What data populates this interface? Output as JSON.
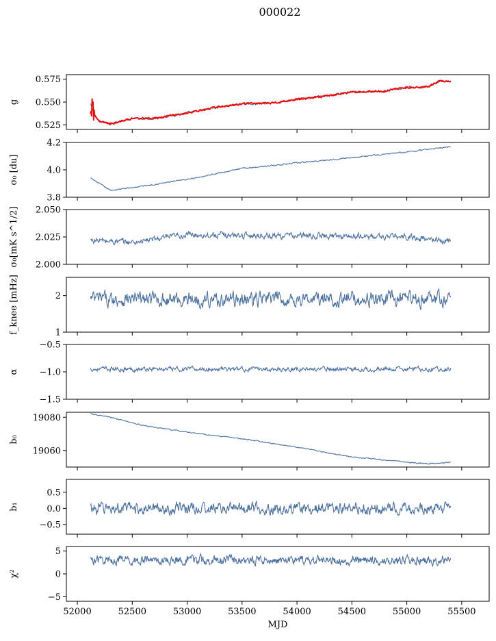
{
  "figure": {
    "title": "000022"
  },
  "colors": {
    "series": "#4c72a4",
    "fit": "#ff0000",
    "axis": "#000000"
  },
  "chart_data": [
    {
      "type": "line",
      "ylabel": "g",
      "ylim": [
        0.52,
        0.58
      ],
      "yticks": [
        0.525,
        0.55,
        0.575
      ],
      "ytick_labels": [
        "0.525",
        "0.550",
        "0.575"
      ],
      "xlim": [
        51900,
        55750
      ],
      "xticks": [
        52000,
        52500,
        53000,
        53500,
        54000,
        54500,
        55000,
        55500
      ],
      "x_range": [
        52120,
        55400
      ],
      "trend_x": [
        52120,
        52150,
        52200,
        52300,
        52500,
        52700,
        53000,
        53300,
        53500,
        53800,
        54000,
        54300,
        54500,
        54800,
        55000,
        55200,
        55300,
        55400
      ],
      "trend_y": [
        0.548,
        0.537,
        0.529,
        0.526,
        0.532,
        0.532,
        0.538,
        0.545,
        0.548,
        0.549,
        0.553,
        0.557,
        0.561,
        0.562,
        0.566,
        0.567,
        0.573,
        0.572
      ],
      "noise": 0.0012,
      "n_points": 700,
      "overlay": "fit"
    },
    {
      "type": "line",
      "ylabel": "σ₀ [du]",
      "ylim": [
        3.8,
        4.2
      ],
      "yticks": [
        3.8,
        4.0,
        4.2
      ],
      "ytick_labels": [
        "3.8",
        "4.0",
        "4.2"
      ],
      "xlim": [
        51900,
        55750
      ],
      "x_range": [
        52120,
        55400
      ],
      "trend_x": [
        52120,
        52300,
        52500,
        53000,
        53500,
        54000,
        54500,
        55000,
        55400
      ],
      "trend_y": [
        3.94,
        3.85,
        3.87,
        3.93,
        4.01,
        4.05,
        4.09,
        4.13,
        4.17
      ],
      "noise": 0.005,
      "n_points": 700
    },
    {
      "type": "line",
      "ylabel": "σ₀[mK s^1/2]",
      "ylim": [
        2.0,
        2.05
      ],
      "yticks": [
        2.0,
        2.025,
        2.05
      ],
      "ytick_labels": [
        "2.000",
        "2.025",
        "2.050"
      ],
      "xlim": [
        51900,
        55750
      ],
      "x_range": [
        52120,
        55400
      ],
      "trend_x": [
        52120,
        52500,
        53000,
        54000,
        55000,
        55400
      ],
      "trend_y": [
        2.022,
        2.02,
        2.027,
        2.026,
        2.025,
        2.021
      ],
      "noise": 0.003,
      "n_points": 700
    },
    {
      "type": "line",
      "ylabel": "f_knee [mHz]",
      "ylim": [
        1.0,
        2.5
      ],
      "yticks": [
        1,
        2
      ],
      "ytick_labels": [
        "1",
        "2"
      ],
      "xlim": [
        51900,
        55750
      ],
      "x_range": [
        52120,
        55400
      ],
      "trend_x": [
        52120,
        55400
      ],
      "trend_y": [
        1.9,
        1.9
      ],
      "noise": 0.22,
      "n_points": 700
    },
    {
      "type": "line",
      "ylabel": "α",
      "ylim": [
        -1.5,
        -0.5
      ],
      "yticks": [
        -1.5,
        -1.0,
        -0.5
      ],
      "ytick_labels": [
        "−1.5",
        "−1.0",
        "−0.5"
      ],
      "xlim": [
        51900,
        55750
      ],
      "x_range": [
        52120,
        55400
      ],
      "trend_x": [
        52120,
        55400
      ],
      "trend_y": [
        -0.95,
        -0.95
      ],
      "noise": 0.045,
      "n_points": 700
    },
    {
      "type": "line",
      "ylabel": "b₀",
      "ylim": [
        19050,
        19083
      ],
      "yticks": [
        19060,
        19080
      ],
      "ytick_labels": [
        "19060",
        "19080"
      ],
      "xlim": [
        51900,
        55750
      ],
      "x_range": [
        52120,
        55400
      ],
      "trend_x": [
        52120,
        52300,
        52600,
        53000,
        53500,
        54000,
        54500,
        55000,
        55200,
        55400
      ],
      "trend_y": [
        19082,
        19080,
        19075,
        19071,
        19067,
        19062,
        19056,
        19053,
        19052,
        19053
      ],
      "noise": 0.35,
      "n_points": 700
    },
    {
      "type": "line",
      "ylabel": "b₁",
      "ylim": [
        -0.8,
        0.9
      ],
      "yticks": [
        -0.5,
        0.0,
        0.5
      ],
      "ytick_labels": [
        "−0.5",
        "0.0",
        "0.5"
      ],
      "xlim": [
        51900,
        55750
      ],
      "x_range": [
        52120,
        55400
      ],
      "trend_x": [
        52120,
        55400
      ],
      "trend_y": [
        0.0,
        0.0
      ],
      "noise": 0.2,
      "n_points": 700
    },
    {
      "type": "line",
      "ylabel": "χ²",
      "ylim": [
        -6,
        6
      ],
      "yticks": [
        -5,
        0,
        5
      ],
      "ytick_labels": [
        "−5",
        "0",
        "5"
      ],
      "xlim": [
        51900,
        55750
      ],
      "x_range": [
        52120,
        55400
      ],
      "trend_x": [
        52120,
        55400
      ],
      "trend_y": [
        3.0,
        3.0
      ],
      "noise": 1.1,
      "n_points": 700,
      "xlabel": "MJD",
      "xtick_labels": [
        "52000",
        "52500",
        "53000",
        "53500",
        "54000",
        "54500",
        "55000",
        "55500"
      ]
    }
  ]
}
